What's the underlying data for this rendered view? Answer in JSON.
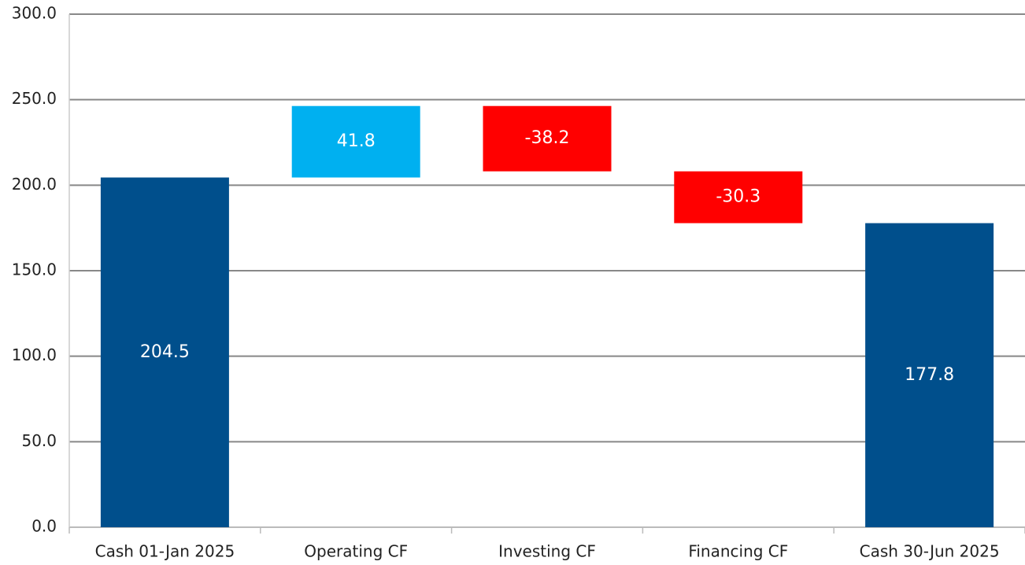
{
  "chart_data": {
    "type": "waterfall",
    "categories": [
      "Cash 01-Jan 2025",
      "Operating CF",
      "Investing CF",
      "Financing CF",
      "Cash 30-Jun 2025"
    ],
    "values": [
      204.5,
      41.8,
      -38.2,
      -30.3,
      177.8
    ],
    "colors": [
      "#004f8c",
      "#00b0f0",
      "#ff0000",
      "#ff0000",
      "#004f8c"
    ],
    "ylim": [
      0,
      300
    ],
    "yticks": [
      {
        "value": 0,
        "label": "0.0"
      },
      {
        "value": 50,
        "label": "50.0"
      },
      {
        "value": 100,
        "label": "100.0"
      },
      {
        "value": 150,
        "label": "150.0"
      },
      {
        "value": 200,
        "label": "200.0"
      },
      {
        "value": 250,
        "label": "250.0"
      },
      {
        "value": 300,
        "label": "300.0"
      }
    ],
    "grid": true
  }
}
